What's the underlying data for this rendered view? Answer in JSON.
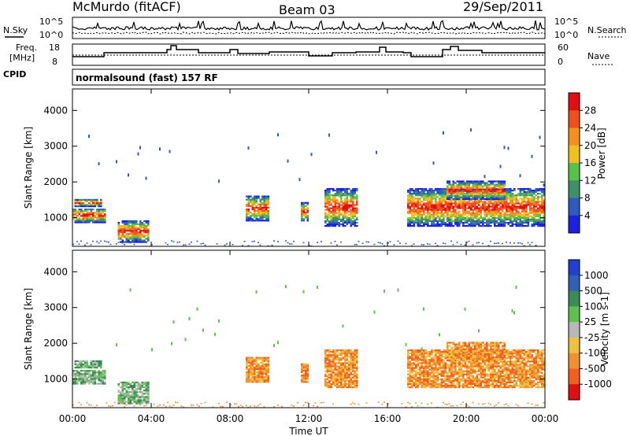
{
  "header": {
    "station": "McMurdo (fitACF)",
    "beam": "Beam 03",
    "date": "29/Sep/2011"
  },
  "summary_panels": {
    "nsky_label": "N.Sky",
    "nsearch_label": "N.Search",
    "freq_label_1": "Freq.",
    "freq_label_2": "[MHz]",
    "nave_label": "Nave",
    "cpid_label": "CPID",
    "noise_ticks_left": [
      "10^5",
      "10^0"
    ],
    "noise_ticks_right": [
      "10^5",
      "10^0"
    ],
    "freq_ticks": [
      "18",
      "8"
    ],
    "nave_ticks": [
      "60",
      "0"
    ],
    "cpid_text": "normalsound (fast) 157 RF"
  },
  "chart_data": [
    {
      "type": "heatmap",
      "title": "",
      "xlabel": "",
      "ylabel": "Slant Range [km]",
      "xlim_hours": [
        0,
        24
      ],
      "ylim": [
        200,
        4600
      ],
      "yticks": [
        "1000",
        "2000",
        "3000",
        "4000"
      ],
      "colorbar": {
        "label": "Power [dB]",
        "ticks": [
          "4",
          "8",
          "12",
          "16",
          "20",
          "24",
          "28"
        ],
        "colors": [
          "#1f1fe0",
          "#2f5bbf",
          "#3e8f6a",
          "#59c24a",
          "#f0c020",
          "#f29020",
          "#f05020",
          "#e01010"
        ]
      }
    },
    {
      "type": "heatmap",
      "title": "",
      "xlabel": "Time UT",
      "ylabel": "Slant Range [km]",
      "xlim_hours": [
        0,
        24
      ],
      "ylim": [
        200,
        4600
      ],
      "yticks": [
        "1000",
        "2000",
        "3000",
        "4000"
      ],
      "xticks": [
        "00:00",
        "04:00",
        "08:00",
        "12:00",
        "16:00",
        "20:00",
        "00:00"
      ],
      "colorbar": {
        "label": "Velocity [m s-1]",
        "ticks": [
          "1000",
          "500",
          "100",
          "25",
          "-25",
          "-100",
          "-500",
          "-1000"
        ],
        "colors": [
          "#2040d0",
          "#3060b0",
          "#3c8a5a",
          "#60c050",
          "#b8b8b8",
          "#f0c040",
          "#f09030",
          "#f06020",
          "#e01010"
        ]
      }
    }
  ]
}
